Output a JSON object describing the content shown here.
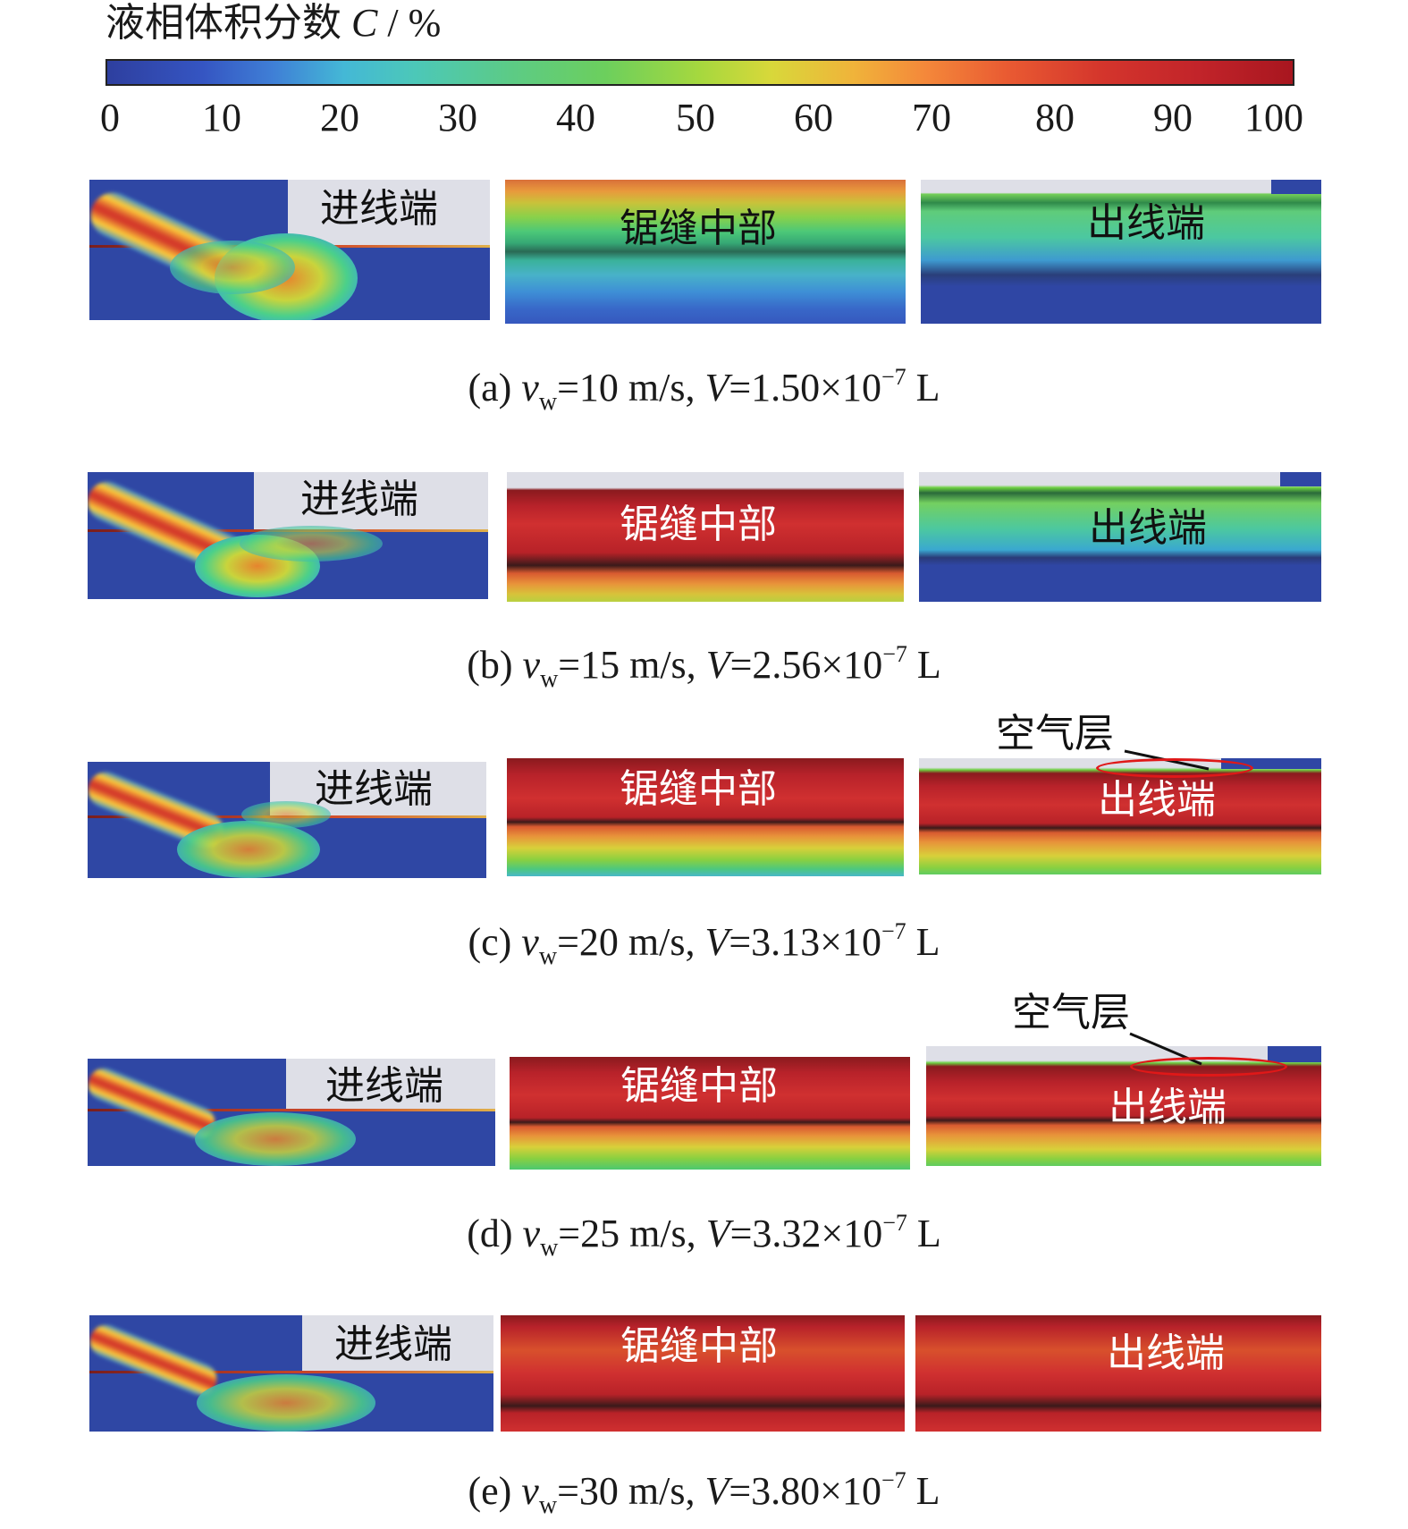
{
  "colorbar": {
    "title": "液相体积分数",
    "var": "C",
    "unit": "/ %",
    "ticks": [
      "0",
      "10",
      "20",
      "30",
      "40",
      "50",
      "60",
      "70",
      "80",
      "90",
      "100"
    ]
  },
  "labels": {
    "inlet": "进线端",
    "middle": "锯缝中部",
    "outlet": "出线端",
    "air_layer": "空气层"
  },
  "rows": [
    {
      "tag": "(a)",
      "v_sym": "v",
      "v_sub": "w",
      "v_val": "=10 m/s,",
      "V_sym": "V",
      "V_val": "=1.50×10",
      "exp": "−7",
      "unit": "L"
    },
    {
      "tag": "(b)",
      "v_sym": "v",
      "v_sub": "w",
      "v_val": "=15 m/s,",
      "V_sym": "V",
      "V_val": "=2.56×10",
      "exp": "−7",
      "unit": "L"
    },
    {
      "tag": "(c)",
      "v_sym": "v",
      "v_sub": "w",
      "v_val": "=20 m/s,",
      "V_sym": "V",
      "V_val": "=3.13×10",
      "exp": "−7",
      "unit": "L"
    },
    {
      "tag": "(d)",
      "v_sym": "v",
      "v_sub": "w",
      "v_val": "=25 m/s,",
      "V_sym": "V",
      "V_val": "=3.32×10",
      "exp": "−7",
      "unit": "L"
    },
    {
      "tag": "(e)",
      "v_sym": "v",
      "v_sub": "w",
      "v_val": "=30 m/s,",
      "V_sym": "V",
      "V_val": "=3.80×10",
      "exp": "−7",
      "unit": "L"
    }
  ]
}
